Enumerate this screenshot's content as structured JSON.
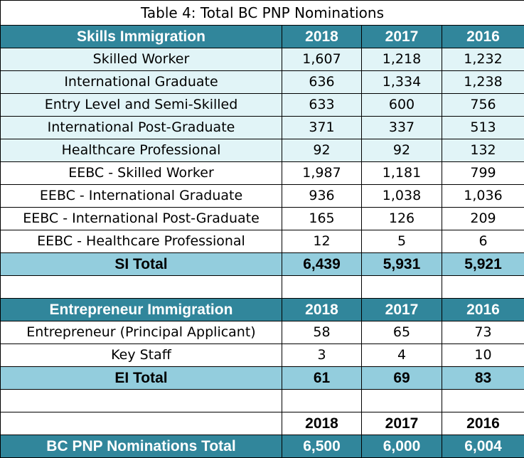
{
  "title": "Table 4: Total BC PNP Nominations",
  "skills": {
    "header": "Skills Immigration",
    "years": [
      "2018",
      "2017",
      "2016"
    ],
    "rows": [
      {
        "label": "Skilled Worker",
        "v": [
          "1,607",
          "1,218",
          "1,232"
        ]
      },
      {
        "label": "International Graduate",
        "v": [
          "636",
          "1,334",
          "1,238"
        ]
      },
      {
        "label": "Entry Level and Semi-Skilled",
        "v": [
          "633",
          "600",
          "756"
        ]
      },
      {
        "label": "International Post-Graduate",
        "v": [
          "371",
          "337",
          "513"
        ]
      },
      {
        "label": "Healthcare Professional",
        "v": [
          "92",
          "92",
          "132"
        ]
      },
      {
        "label": "EEBC - Skilled Worker",
        "v": [
          "1,987",
          "1,181",
          "799"
        ]
      },
      {
        "label": "EEBC - International Graduate",
        "v": [
          "936",
          "1,038",
          "1,036"
        ]
      },
      {
        "label": "EEBC - International Post-Graduate",
        "v": [
          "165",
          "126",
          "209"
        ]
      },
      {
        "label": "EEBC - Healthcare Professional",
        "v": [
          "12",
          "5",
          "6"
        ]
      }
    ],
    "total_label": "SI Total",
    "total": [
      "6,439",
      "5,931",
      "5,921"
    ]
  },
  "entrepreneur": {
    "header": "Entrepreneur Immigration",
    "years": [
      "2018",
      "2017",
      "2016"
    ],
    "rows": [
      {
        "label": "Entrepreneur (Principal Applicant)",
        "v": [
          "58",
          "65",
          "73"
        ]
      },
      {
        "label": "Key Staff",
        "v": [
          "3",
          "4",
          "10"
        ]
      }
    ],
    "total_label": "EI Total",
    "total": [
      "61",
      "69",
      "83"
    ]
  },
  "grand": {
    "years": [
      "2018",
      "2017",
      "2016"
    ],
    "label": "BC PNP Nominations Total",
    "total": [
      "6,500",
      "6,000",
      "6,004"
    ]
  },
  "colors": {
    "header_bg": "#31869b",
    "total_bg": "#93cddd",
    "alt_row_bg": "#e1f4f7"
  }
}
